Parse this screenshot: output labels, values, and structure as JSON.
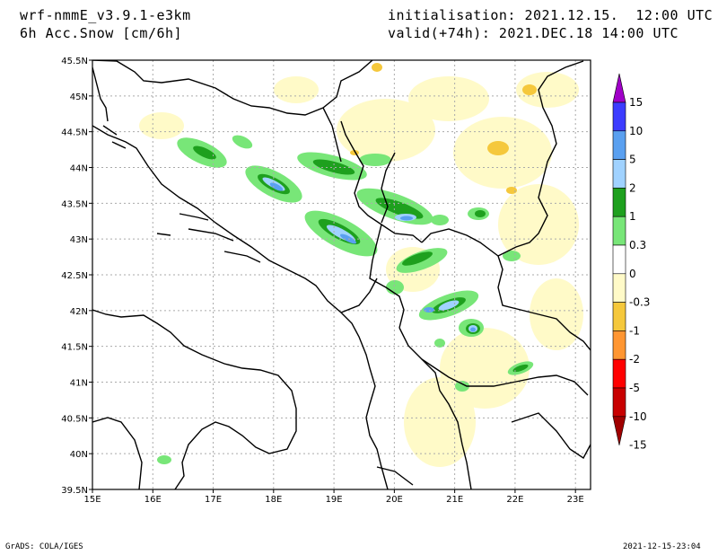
{
  "header": {
    "model": "wrf-nmmE_v3.9.1-e3km",
    "variable": "6h Acc.Snow [cm/6h]",
    "initialisation": "initialisation: 2021.12.15.  12:00 UTC",
    "valid": "valid(+74h): 2021.DEC.18 14:00 UTC"
  },
  "footer": {
    "left": "GrADS: COLA/IGES",
    "right": "2021-12-15-23:04"
  },
  "axes": {
    "lon_range": [
      15,
      23.25
    ],
    "lat_range": [
      39.5,
      45.5
    ],
    "lon_labels": [
      "15E",
      "16E",
      "17E",
      "18E",
      "19E",
      "20E",
      "21E",
      "22E",
      "23E"
    ],
    "lat_labels": [
      "39.5N",
      "40N",
      "40.5N",
      "41N",
      "41.5N",
      "42N",
      "42.5N",
      "43N",
      "43.5N",
      "44N",
      "44.5N",
      "45N",
      "45.5N"
    ]
  },
  "colorbar": {
    "labels": [
      "15",
      "10",
      "5",
      "2",
      "1",
      "0.3",
      "0",
      "-0.3",
      "-1",
      "-2",
      "-5",
      "-10",
      "-15"
    ],
    "colors": [
      "#a000c8",
      "#3c3cff",
      "#5aa0f0",
      "#a0d2ff",
      "#1ea01e",
      "#78e678",
      "#ffffff",
      "#fffac8",
      "#f5c83c",
      "#ff9632",
      "#ff0000",
      "#c80000",
      "#a00000"
    ]
  },
  "map": {
    "coast_color": "#000000",
    "grid": true,
    "fill_colors": {
      "light_green": "#78e678",
      "dark_green": "#1ea01e",
      "light_blue": "#a0d2ff",
      "blue": "#5aa0f0",
      "pale_yellow": "#fffac8",
      "yellow": "#f5c83c"
    }
  }
}
